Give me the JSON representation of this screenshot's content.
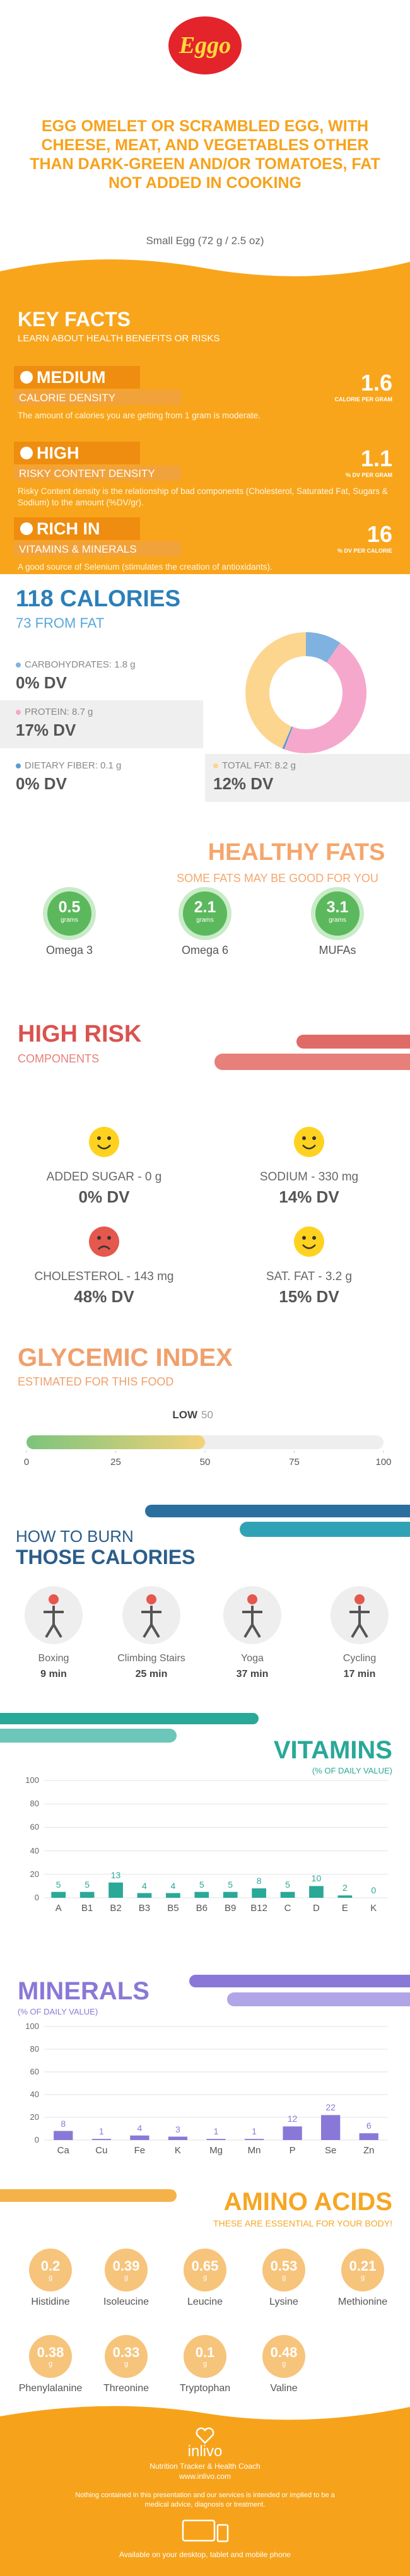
{
  "header": {
    "logo": "Eggo",
    "title": "EGG OMELET OR SCRAMBLED EGG, WITH CHEESE, MEAT, AND VEGETABLES OTHER THAN DARK-GREEN AND/OR TOMATOES, FAT NOT ADDED IN COOKING",
    "subtitle": "Small Egg (72 g / 2.5 oz)"
  },
  "key_facts": {
    "title": "KEY FACTS",
    "subtitle": "LEARN ABOUT HEALTH BENEFITS OR RISKS",
    "items": [
      {
        "level": "MEDIUM",
        "name": "CALORIE DENSITY",
        "value": "1.6",
        "unit": "CALORIE PER GRAM",
        "description": "The amount of calories you are getting from 1 gram is moderate."
      },
      {
        "level": "HIGH",
        "name": "RISKY CONTENT DENSITY",
        "value": "1.1",
        "unit": "% DV PER GRAM",
        "description": "Risky Content density is the relationship of bad components (Cholesterol, Saturated Fat, Sugars & Sodium) to the amount (%DV/gr)."
      },
      {
        "level": "RICH  IN",
        "name": "VITAMINS & MINERALS",
        "value": "16",
        "unit": "% DV PER CALORIE",
        "description": "A good source of Selenium (stimulates the creation of antioxidants)."
      }
    ]
  },
  "calories": {
    "title": "118 CALORIES",
    "subtitle": "73 FROM FAT"
  },
  "healthy_fats": {
    "title": "HEALTHY FATS",
    "subtitle": "SOME FATS MAY BE GOOD FOR YOU",
    "unit": "grams",
    "items": [
      {
        "value": "0.5",
        "name": "Omega 3"
      },
      {
        "value": "2.1",
        "name": "Omega 6"
      },
      {
        "value": "3.1",
        "name": "MUFAs"
      }
    ]
  },
  "high_risk": {
    "title": "HIGH RISK",
    "subtitle": "COMPONENTS",
    "items": [
      {
        "label": "ADDED SUGAR - 0 g",
        "dv": "0% DV"
      },
      {
        "label": "SODIUM - 330 mg",
        "dv": "14% DV"
      },
      {
        "label": "CHOLESTEROL - 143 mg",
        "dv": "48% DV"
      },
      {
        "label": "SAT. FAT - 3.2 g",
        "dv": "15% DV"
      }
    ]
  },
  "burn": {
    "title": "HOW TO BURN",
    "subtitle": "THOSE CALORIES",
    "items": [
      {
        "name": "Boxing",
        "time": "9 min"
      },
      {
        "name": "Climbing Stairs",
        "time": "25 min"
      },
      {
        "name": "Yoga",
        "time": "37 min"
      },
      {
        "name": "Cycling",
        "time": "17 min"
      }
    ]
  },
  "amino_acids": {
    "title": "AMINO ACIDS",
    "subtitle": "THESE ARE ESSENTIAL FOR YOUR BODY!",
    "unit": "g",
    "items": [
      {
        "name": "Histidine",
        "value": "0.2"
      },
      {
        "name": "Isoleucine",
        "value": "0.39"
      },
      {
        "name": "Leucine",
        "value": "0.65"
      },
      {
        "name": "Lysine",
        "value": "0.53"
      },
      {
        "name": "Methionine",
        "value": "0.21"
      },
      {
        "name": "Phenylalanine",
        "value": "0.38"
      },
      {
        "name": "Threonine",
        "value": "0.33"
      },
      {
        "name": "Tryptophan",
        "value": "0.1"
      },
      {
        "name": "Valine",
        "value": "0.48"
      }
    ]
  },
  "footer": {
    "brand": "inlivo",
    "tagline": "Nutrition Tracker & Health Coach",
    "url": "www.inlivo.com",
    "disclaimer": "Nothing contained in this presentation and our services is intended or implied to be a medical advice, diagnosis or treatment.",
    "available": "Available on your desktop, tablet and mobile phone"
  },
  "chart_data": [
    {
      "type": "pie",
      "values": [
        1.8,
        8.7,
        0.1,
        8.2
      ],
      "value_labels": [
        "CARBOHYDRATES: 1.8 g",
        "PROTEIN: 8.7 g",
        "DIETARY FIBER: 0.1 g",
        "TOTAL FAT: 8.2 g"
      ],
      "dv_labels": [
        "0% DV",
        "17% DV",
        "0% DV",
        "12% DV"
      ],
      "colors": [
        "#7fb2e0",
        "#f5a8cb",
        "#5b9bd5",
        "#fcd68f"
      ]
    },
    {
      "type": "gauge",
      "title": "GLYCEMIC INDEX",
      "subtitle": "ESTIMATED FOR THIS FOOD",
      "label": "LOW",
      "value": 50,
      "xlim": [
        0,
        100
      ],
      "xticks": [
        0,
        25,
        50,
        75,
        100
      ],
      "color": "#7cc47c"
    },
    {
      "type": "bar",
      "title": "VITAMINS",
      "subtitle": "(% OF DAILY VALUE)",
      "categories": [
        "A",
        "B1",
        "B2",
        "B3",
        "B5",
        "B6",
        "B9",
        "B12",
        "C",
        "D",
        "E",
        "K"
      ],
      "values": [
        5,
        5,
        13,
        4,
        4,
        5,
        5,
        8,
        5,
        10,
        2,
        0
      ],
      "color": "#2aa898",
      "ylim": [
        0,
        100
      ],
      "yticks": [
        0,
        20,
        40,
        60,
        80,
        100
      ],
      "grid": true
    },
    {
      "type": "bar",
      "title": "MINERALS",
      "subtitle": "(% OF DAILY VALUE)",
      "categories": [
        "Ca",
        "Cu",
        "Fe",
        "K",
        "Mg",
        "Mn",
        "P",
        "Se",
        "Zn"
      ],
      "values": [
        8,
        1,
        4,
        3,
        1,
        1,
        12,
        22,
        6
      ],
      "color": "#8a78d8",
      "ylim": [
        0,
        100
      ],
      "yticks": [
        0,
        20,
        40,
        60,
        80,
        100
      ],
      "grid": true
    }
  ]
}
